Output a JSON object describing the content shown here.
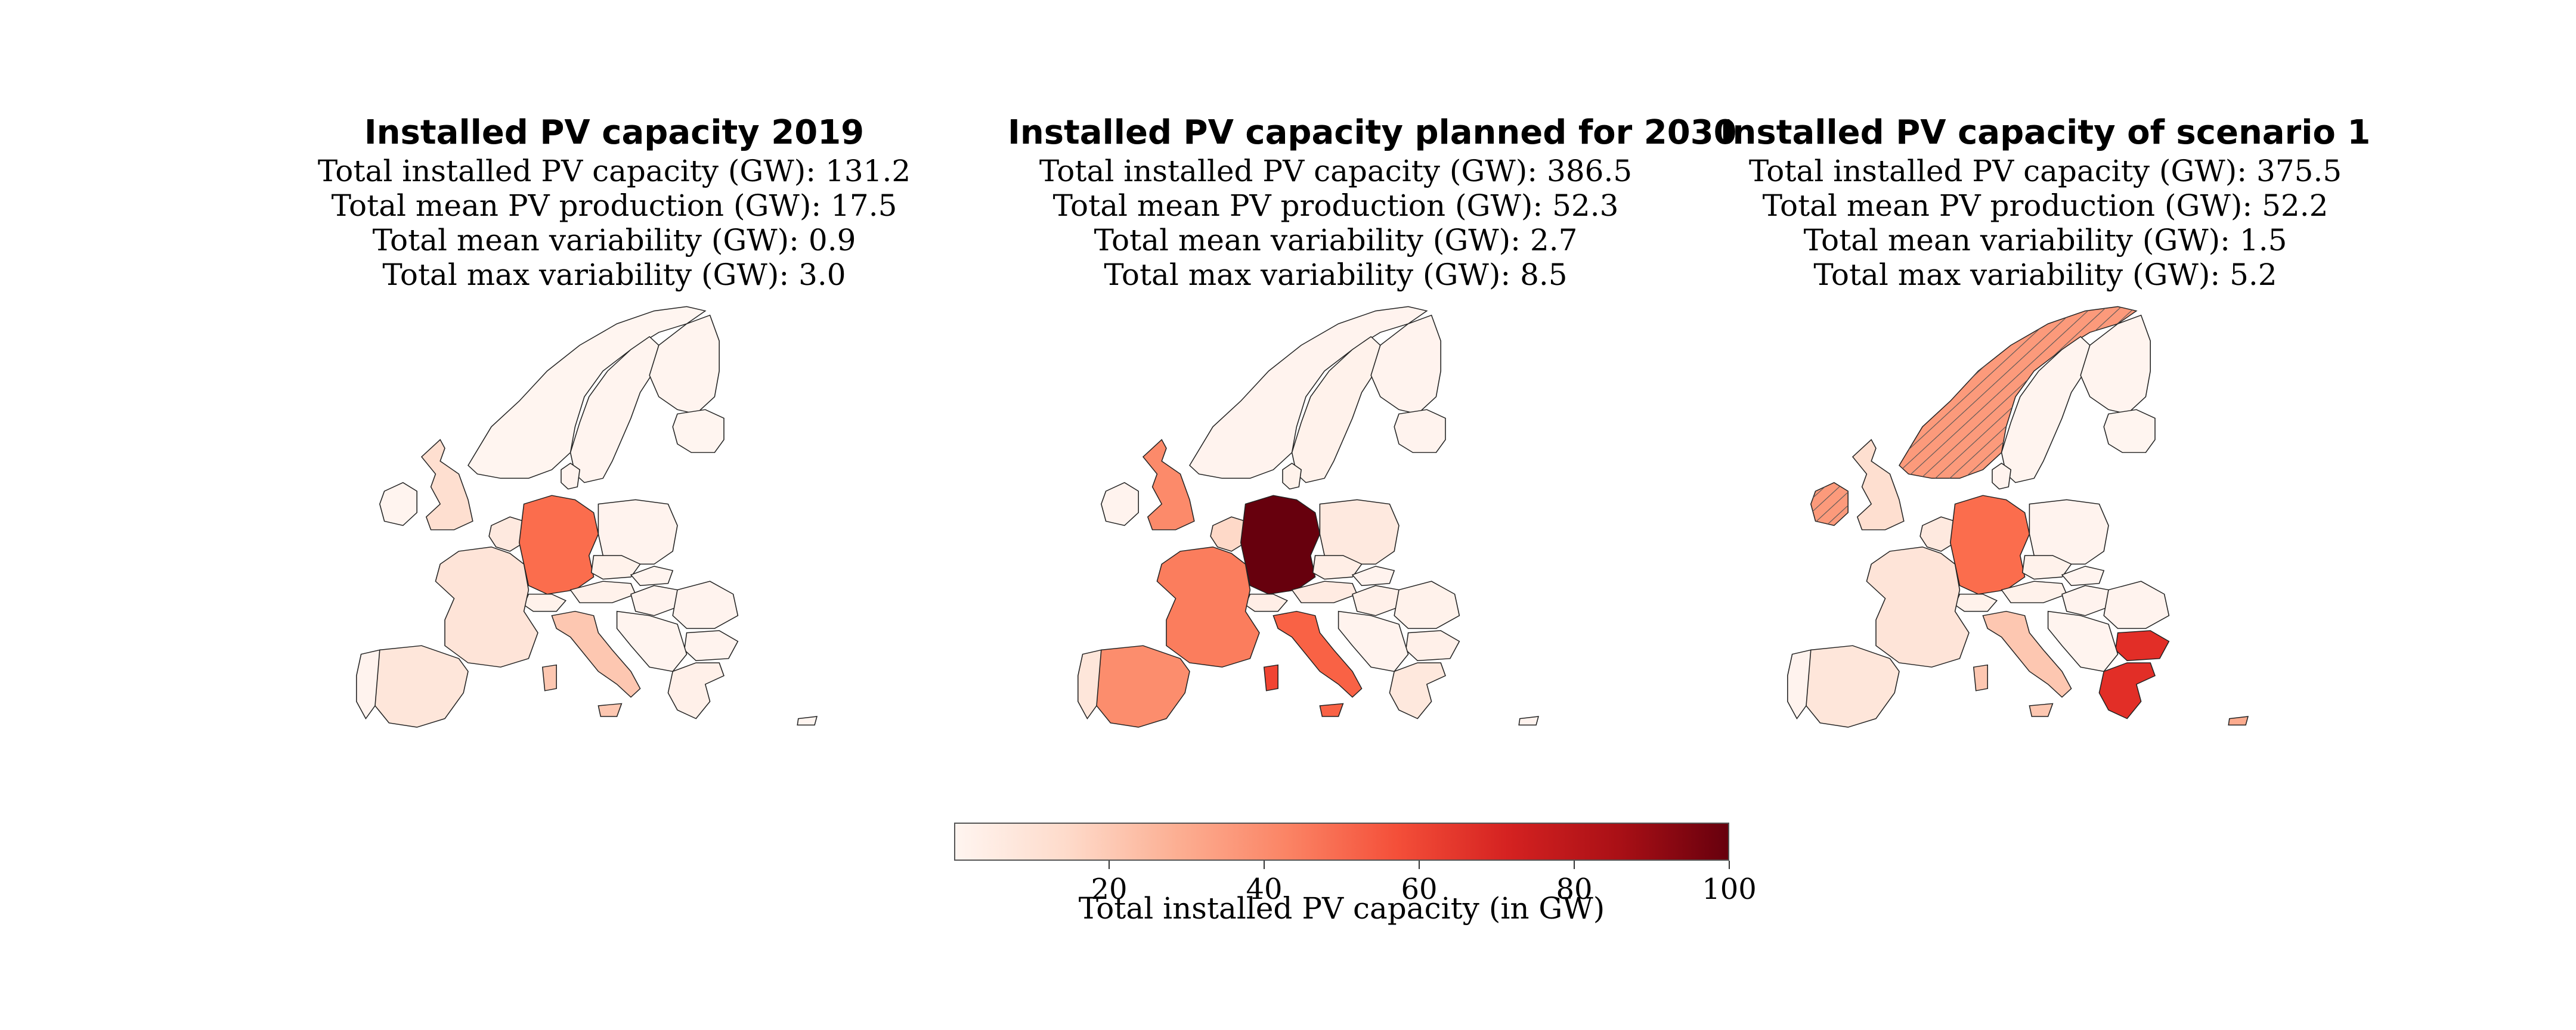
{
  "panels": [
    {
      "title": "Installed PV capacity 2019",
      "stats": [
        "Total installed PV capacity (GW): 131.2",
        "Total mean PV production (GW): 17.5",
        "Total mean variability (GW): 0.9",
        "Total max variability (GW): 3.0"
      ],
      "countries": {
        "germany": 49,
        "france": 10,
        "spain": 9,
        "italy": 21,
        "uk": 13,
        "ireland": 0.5,
        "portugal": 1,
        "poland": 1,
        "czechia": 2,
        "austria": 2,
        "switzerland": 2,
        "benelux": 7,
        "denmark": 1,
        "norway": 0.2,
        "sweden": 0.5,
        "finland": 0.3,
        "baltics": 0.2,
        "hungary": 1,
        "romania": 1,
        "bulgaria": 1,
        "greece": 3,
        "balkans": 0.5,
        "slovakia": 0.5,
        "cyprus": 0.1,
        "sicily": 21,
        "sardinia": 21
      },
      "hatched": []
    },
    {
      "title": "Installed PV capacity planned for 2030",
      "stats": [
        "Total installed PV capacity (GW): 386.5",
        "Total mean PV production (GW): 52.3",
        "Total mean variability (GW): 2.7",
        "Total max variability (GW): 8.5"
      ],
      "countries": {
        "germany": 100,
        "france": 44,
        "spain": 39,
        "italy": 52,
        "uk": 40,
        "ireland": 1,
        "portugal": 9,
        "poland": 7,
        "czechia": 4,
        "austria": 6,
        "switzerland": 4,
        "benelux": 15,
        "denmark": 2,
        "norway": 1,
        "sweden": 2,
        "finland": 1,
        "baltics": 1,
        "hungary": 3,
        "romania": 2,
        "bulgaria": 3,
        "greece": 8,
        "balkans": 1,
        "slovakia": 1,
        "cyprus": 1,
        "sicily": 52,
        "sardinia": 60
      },
      "hatched": []
    },
    {
      "title": "Installed PV capacity of scenario 1",
      "stats": [
        "Total installed PV capacity (GW): 375.5",
        "Total mean PV production (GW): 52.2",
        "Total mean variability (GW): 1.5",
        "Total max variability (GW): 5.2"
      ],
      "countries": {
        "germany": 49,
        "france": 10,
        "spain": 9,
        "italy": 21,
        "uk": 13,
        "ireland": 35,
        "portugal": 1,
        "poland": 1,
        "czechia": 2,
        "austria": 2,
        "switzerland": 2,
        "benelux": 7,
        "denmark": 1,
        "norway": 35,
        "sweden": 0.5,
        "finland": 0.3,
        "baltics": 0.2,
        "hungary": 1,
        "romania": 1,
        "bulgaria": 67,
        "greece": 67,
        "balkans": 0.5,
        "slovakia": 0.5,
        "cyprus": 30,
        "sicily": 21,
        "sardinia": 21
      },
      "hatched": [
        "norway",
        "ireland"
      ]
    }
  ],
  "colorbar": {
    "label": "Total installed PV capacity (in GW)",
    "min": 0,
    "max": 100,
    "ticks": [
      "20",
      "40",
      "60",
      "80",
      "100"
    ],
    "colormap": [
      "#fff5f0",
      "#fee0d2",
      "#fcbba1",
      "#fc9272",
      "#fb6a4a",
      "#ef3b2c",
      "#cb181d",
      "#a50f15",
      "#67000d"
    ]
  }
}
